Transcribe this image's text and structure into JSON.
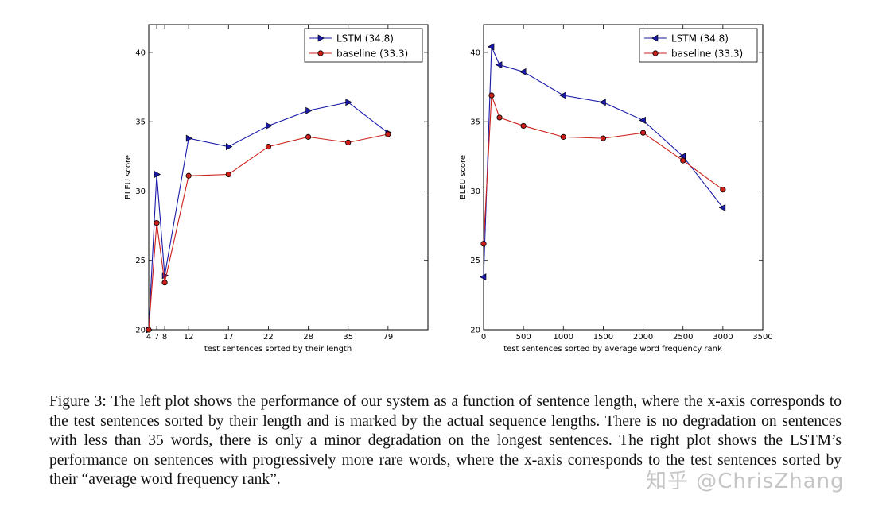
{
  "colors": {
    "lstm": "#1a1aa8",
    "baseline": "#cc1f1a",
    "axis": "#000000"
  },
  "chart_data": [
    {
      "type": "line",
      "xlabel": "test sentences sorted by their length",
      "ylabel": "BLEU score",
      "ylim": [
        20,
        42
      ],
      "yticks": [
        20,
        25,
        30,
        35,
        40
      ],
      "x_kind": "categorical",
      "x_tick_labels": [
        "4",
        "7",
        "8",
        "12",
        "17",
        "22",
        "28",
        "35",
        "79"
      ],
      "x_positions": [
        0,
        0.5,
        1,
        2.5,
        5,
        7.5,
        10,
        12.5,
        15
      ],
      "xlim": [
        0,
        17.5
      ],
      "legend_position": "top-right",
      "series": [
        {
          "name": "LSTM",
          "legend_label": "LSTM  (34.8)",
          "marker": "triangle-right",
          "values": [
            20,
            31.2,
            23.9,
            33.8,
            33.2,
            34.7,
            35.8,
            36.4,
            34.2
          ]
        },
        {
          "name": "baseline",
          "legend_label": "baseline (33.3)",
          "marker": "circle",
          "values": [
            20,
            27.7,
            23.4,
            31.1,
            31.2,
            33.2,
            33.9,
            33.5,
            34.1
          ]
        }
      ]
    },
    {
      "type": "line",
      "xlabel": "test sentences sorted by average word frequency rank",
      "ylabel": "BLEU score",
      "ylim": [
        20,
        42
      ],
      "yticks": [
        20,
        25,
        30,
        35,
        40
      ],
      "x_kind": "numeric",
      "xlim": [
        0,
        3500
      ],
      "xticks": [
        0,
        500,
        1000,
        1500,
        2000,
        2500,
        3000,
        3500
      ],
      "legend_position": "top-right",
      "series": [
        {
          "name": "LSTM",
          "legend_label": "LSTM  (34.8)",
          "marker": "triangle-left",
          "x": [
            0,
            100,
            200,
            500,
            1000,
            1500,
            2000,
            2500,
            3000
          ],
          "values": [
            23.8,
            40.4,
            39.1,
            38.6,
            36.9,
            36.4,
            35.1,
            32.5,
            28.8
          ]
        },
        {
          "name": "baseline",
          "legend_label": "baseline (33.3)",
          "marker": "circle",
          "x": [
            0,
            100,
            200,
            500,
            1000,
            1500,
            2000,
            2500,
            3000
          ],
          "values": [
            26.2,
            36.9,
            35.3,
            34.7,
            33.9,
            33.8,
            34.2,
            32.2,
            30.1
          ]
        }
      ]
    }
  ],
  "caption": {
    "label": "Figure 3:",
    "text": "The left plot shows the performance of our system as a function of sentence length, where the x-axis corresponds to the test sentences sorted by their length and is marked by the actual sequence lengths. There is no degradation on sentences with less than 35 words, there is only a minor degradation on the longest sentences.  The right plot shows the LSTM’s performance on sentences with progressively more rare words, where the x-axis corresponds to the test sentences sorted by their “average word frequency rank”."
  },
  "watermark": "知乎 @ChrisZhang"
}
